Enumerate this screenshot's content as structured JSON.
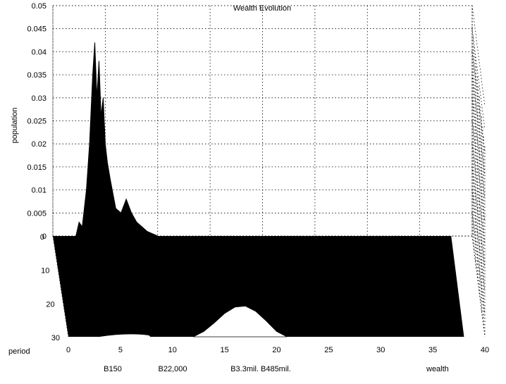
{
  "chart_data": {
    "type": "area",
    "view": "3d-waterfall",
    "title": "Wealth Evolution",
    "xlabel": "wealth",
    "ylabel": "period",
    "zlabel": "population",
    "xlim": [
      0,
      40
    ],
    "ylim": [
      0,
      30
    ],
    "zlim": [
      0,
      0.05
    ],
    "xticks": [
      "0",
      "5",
      "10",
      "15",
      "20",
      "25",
      "30",
      "35",
      "40"
    ],
    "yticks": [
      "0",
      "10",
      "20",
      "30"
    ],
    "zticks": [
      "0",
      "0.005",
      "0.01",
      "0.015",
      "0.02",
      "0.025",
      "0.03",
      "0.035",
      "0.04",
      "0.045",
      "0.05"
    ],
    "wealth_annotations": [
      "B150",
      "B22,000",
      "B3.3mil. B485mil."
    ],
    "grid": true,
    "colors": {
      "surface": "#000000",
      "background": "#ffffff"
    },
    "series": [
      {
        "period": 0,
        "x": [
          2.2,
          2.5,
          2.8,
          3.0,
          3.2,
          3.5,
          3.8,
          4.0,
          4.2,
          4.4,
          4.6,
          4.8,
          5.0,
          5.2,
          5.5,
          6.0,
          6.5,
          7.0,
          7.5,
          8.0,
          8.5,
          9.0,
          9.5,
          10.0
        ],
        "y": [
          0.0,
          0.003,
          0.002,
          0.006,
          0.01,
          0.02,
          0.035,
          0.042,
          0.03,
          0.038,
          0.026,
          0.03,
          0.02,
          0.016,
          0.012,
          0.006,
          0.005,
          0.008,
          0.005,
          0.003,
          0.002,
          0.001,
          0.0005,
          0.0
        ]
      },
      {
        "period": 30,
        "x": [
          12,
          13,
          14,
          15,
          16,
          17,
          18,
          19,
          20,
          21
        ],
        "y": [
          0.0,
          0.0025,
          0.0065,
          0.011,
          0.014,
          0.0145,
          0.012,
          0.0075,
          0.0025,
          0.0
        ]
      }
    ]
  }
}
